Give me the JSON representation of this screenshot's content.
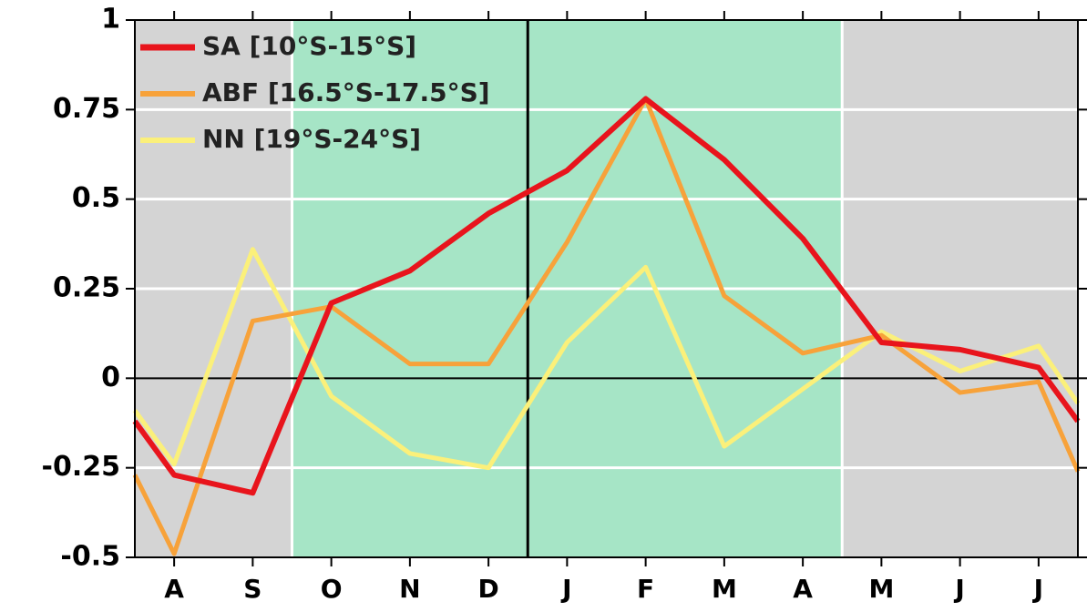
{
  "chart_data": {
    "type": "line",
    "x": [
      0.5,
      1,
      2,
      3,
      4,
      5,
      6,
      7,
      8,
      9,
      10,
      11,
      12,
      12.5
    ],
    "xlim": [
      0.5,
      12.5
    ],
    "xticks": [
      {
        "value": 1,
        "label": "A"
      },
      {
        "value": 2,
        "label": "S"
      },
      {
        "value": 3,
        "label": "O"
      },
      {
        "value": 4,
        "label": "N"
      },
      {
        "value": 5,
        "label": "D"
      },
      {
        "value": 6,
        "label": "J"
      },
      {
        "value": 7,
        "label": "F"
      },
      {
        "value": 8,
        "label": "M"
      },
      {
        "value": 9,
        "label": "A"
      },
      {
        "value": 10,
        "label": "M"
      },
      {
        "value": 11,
        "label": "J"
      },
      {
        "value": 12,
        "label": "J"
      }
    ],
    "ylim": [
      -0.5,
      1
    ],
    "yticks": [
      -0.5,
      -0.25,
      0,
      0.25,
      0.5,
      0.75,
      1
    ],
    "grid": true,
    "legend": "upper left",
    "shading": [
      {
        "from": 0.5,
        "to": 2.5,
        "color": "#d4d4d4"
      },
      {
        "from": 2.5,
        "to": 9.5,
        "color": "#a6e5c6"
      },
      {
        "from": 9.5,
        "to": 12.5,
        "color": "#d4d4d4"
      }
    ],
    "vline": 5.5,
    "series": [
      {
        "name": "SA [10°S-15°S]",
        "color": "#e8141c",
        "width": 6,
        "values": [
          -0.12,
          -0.27,
          -0.32,
          0.21,
          0.3,
          0.46,
          0.58,
          0.78,
          0.61,
          0.39,
          0.1,
          0.08,
          0.03,
          -0.12
        ]
      },
      {
        "name": "ABF [16.5°S-17.5°S]",
        "color": "#f7a23a",
        "width": 5,
        "values": [
          -0.27,
          -0.49,
          0.16,
          0.2,
          0.04,
          0.04,
          0.38,
          0.78,
          0.23,
          0.07,
          0.12,
          -0.04,
          -0.01,
          -0.26
        ]
      },
      {
        "name": "NN [19°S-24°S]",
        "color": "#fbf07a",
        "width": 5,
        "values": [
          -0.09,
          -0.24,
          0.36,
          -0.05,
          -0.21,
          -0.25,
          0.1,
          0.31,
          -0.19,
          -0.03,
          0.13,
          0.02,
          0.09,
          -0.07
        ]
      }
    ]
  }
}
